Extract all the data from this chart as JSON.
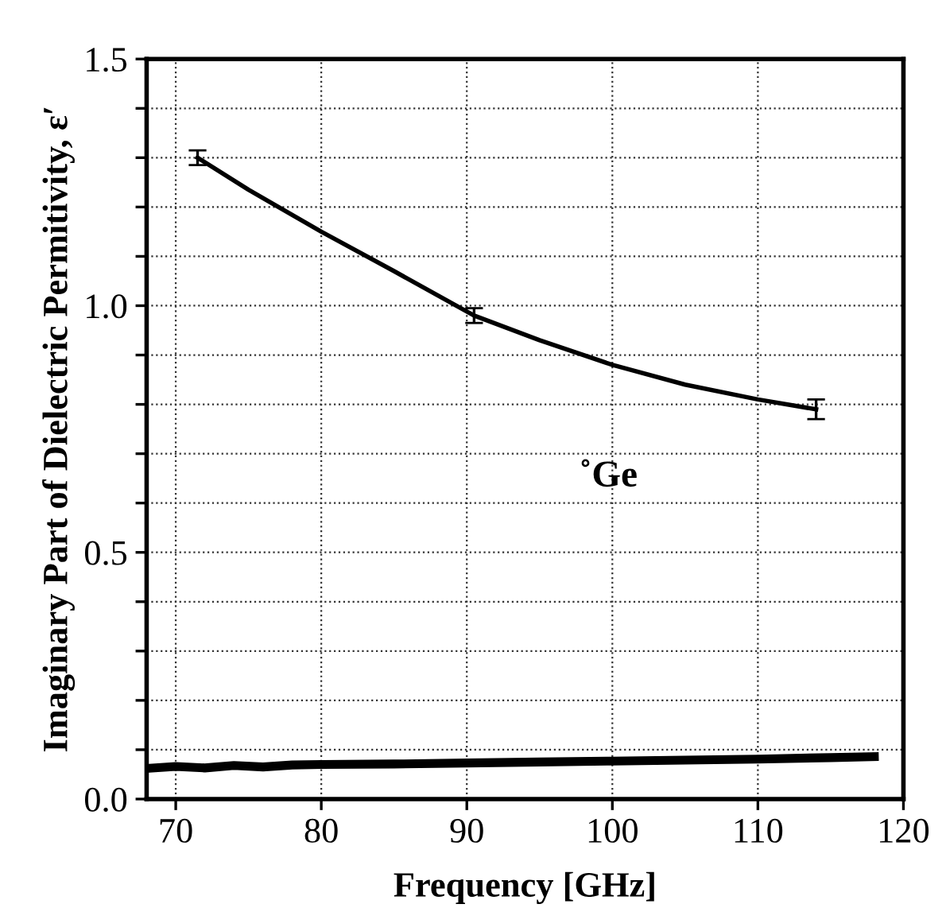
{
  "chart_data": {
    "type": "line",
    "xlabel": "Frequency [GHz]",
    "ylabel": "Imaginary Part of Dielectric Permitivity, ε′",
    "xlim": [
      68,
      120
    ],
    "xticks": [
      70,
      80,
      90,
      100,
      110,
      120
    ],
    "ylim": [
      0,
      1.5
    ],
    "yticks": [
      {
        "value": 0,
        "label": "0.0"
      },
      {
        "value": 0.1,
        "label": null
      },
      {
        "value": 0.2,
        "label": null
      },
      {
        "value": 0.3,
        "label": null
      },
      {
        "value": 0.4,
        "label": null
      },
      {
        "value": 0.5,
        "label": "0.5"
      },
      {
        "value": 0.6,
        "label": null
      },
      {
        "value": 0.7,
        "label": null
      },
      {
        "value": 0.8,
        "label": null
      },
      {
        "value": 0.9,
        "label": null
      },
      {
        "value": 1.0,
        "label": "1.0"
      },
      {
        "value": 1.1,
        "label": null
      },
      {
        "value": 1.2,
        "label": null
      },
      {
        "value": 1.3,
        "label": null
      },
      {
        "value": 1.4,
        "label": null
      },
      {
        "value": 1.5,
        "label": "1.5"
      }
    ],
    "grid": true,
    "line_style": "solid",
    "marker": "none",
    "legend": false,
    "series": [
      {
        "name": "˚Ge",
        "color": "#000000",
        "x": [
          71.5,
          75,
          80,
          85,
          90.5,
          95,
          100,
          105,
          110,
          114
        ],
        "values": [
          1.3,
          1.235,
          1.15,
          1.07,
          0.98,
          0.93,
          0.88,
          0.84,
          0.81,
          0.79
        ],
        "errors": [
          0.015,
          null,
          null,
          null,
          0.015,
          null,
          null,
          null,
          null,
          0.02
        ]
      },
      {
        "color": "#000000",
        "x": [
          68,
          70,
          72,
          74,
          76,
          78,
          80,
          85,
          90,
          95,
          100,
          105,
          110,
          115,
          118
        ],
        "values": [
          0.062,
          0.066,
          0.063,
          0.068,
          0.065,
          0.069,
          0.07,
          0.071,
          0.073,
          0.075,
          0.077,
          0.079,
          0.081,
          0.084,
          0.086
        ]
      }
    ]
  }
}
